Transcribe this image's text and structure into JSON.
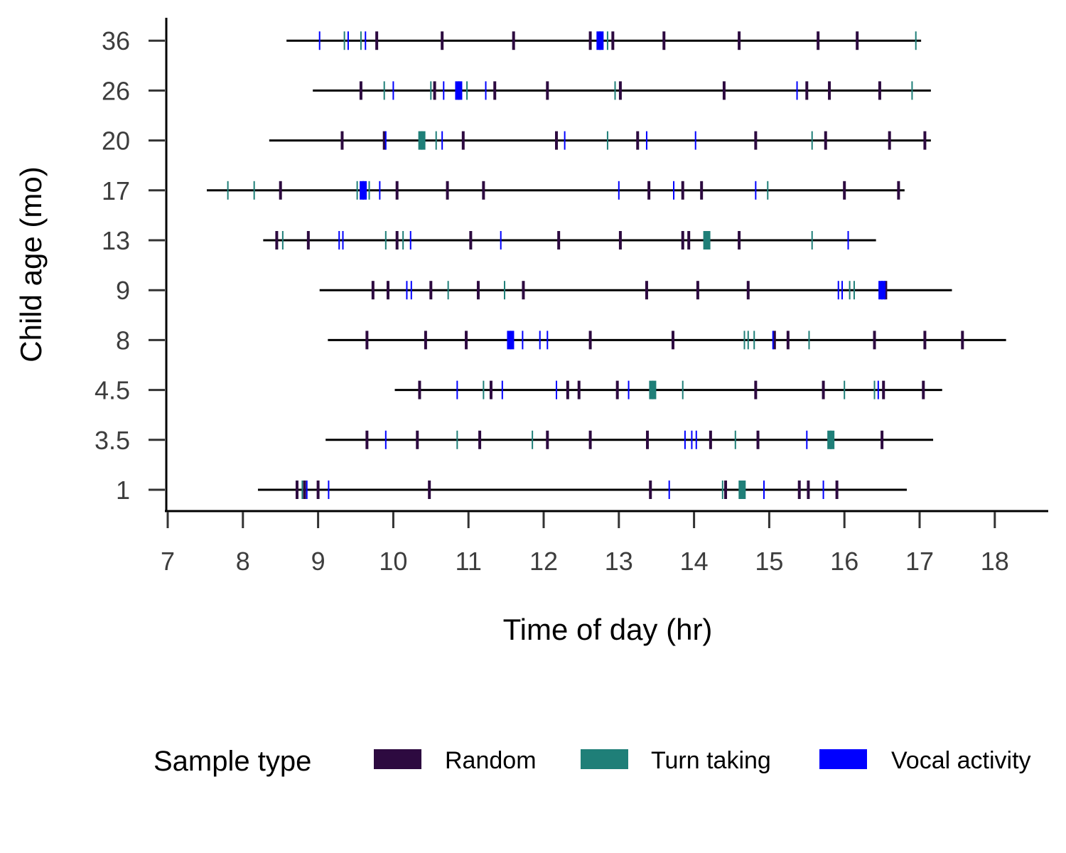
{
  "chart_data": {
    "type": "timeline",
    "xlabel": "Time of day (hr)",
    "ylabel": "Child age (mo)",
    "xlim": [
      7,
      18.7
    ],
    "x_ticks": [
      "7",
      "8",
      "9",
      "10",
      "11",
      "12",
      "13",
      "14",
      "15",
      "16",
      "17",
      "18"
    ],
    "categories": [
      "1",
      "3.5",
      "4.5",
      "8",
      "9",
      "13",
      "17",
      "20",
      "26",
      "36"
    ],
    "legend": {
      "title": "Sample type",
      "position": "bottom",
      "items": [
        {
          "key": "random",
          "label": "Random",
          "color": "#2d0a40"
        },
        {
          "key": "turn",
          "label": "Turn taking",
          "color": "#1f7f78"
        },
        {
          "key": "vocal",
          "label": "Vocal activity",
          "color": "#0000ff"
        }
      ]
    },
    "recordings": [
      {
        "age": "1",
        "start": 8.2,
        "end": 16.83,
        "random": [
          8.72,
          8.82,
          9.0,
          10.48,
          13.42,
          14.42,
          15.4,
          15.52,
          15.9
        ],
        "turn": [
          8.79,
          14.38,
          14.64
        ],
        "vocal": [
          8.85,
          9.14,
          13.67,
          14.93,
          15.72
        ]
      },
      {
        "age": "3.5",
        "start": 9.1,
        "end": 17.18,
        "random": [
          9.65,
          10.32,
          11.15,
          12.05,
          12.62,
          13.38,
          14.22,
          14.85,
          16.5
        ],
        "turn": [
          10.85,
          11.85,
          14.55,
          15.82
        ],
        "vocal": [
          9.9,
          13.88,
          13.97,
          14.03,
          15.5
        ]
      },
      {
        "age": "4.5",
        "start": 10.02,
        "end": 17.3,
        "random": [
          10.35,
          11.3,
          12.32,
          12.47,
          12.98,
          14.82,
          15.72,
          16.52,
          17.05
        ],
        "turn": [
          11.2,
          13.45,
          13.85,
          16.0,
          16.4
        ],
        "vocal": [
          10.85,
          11.45,
          12.17,
          13.13,
          16.45
        ]
      },
      {
        "age": "8",
        "start": 9.13,
        "end": 18.15,
        "random": [
          9.65,
          10.43,
          10.97,
          12.62,
          13.72,
          15.07,
          15.25,
          16.4,
          17.07,
          17.57
        ],
        "turn": [
          14.67,
          14.72,
          14.8,
          15.53
        ],
        "vocal": [
          11.56,
          11.72,
          11.95,
          12.05,
          15.05
        ]
      },
      {
        "age": "9",
        "start": 9.02,
        "end": 17.43,
        "random": [
          9.73,
          9.93,
          10.5,
          11.13,
          11.73,
          13.37,
          14.05,
          14.72,
          16.55
        ],
        "turn": [
          10.73,
          11.48,
          16.07,
          16.13
        ],
        "vocal": [
          10.18,
          10.24,
          15.92,
          15.97,
          16.5
        ]
      },
      {
        "age": "13",
        "start": 8.27,
        "end": 16.42,
        "random": [
          8.45,
          8.87,
          10.05,
          11.03,
          12.2,
          13.02,
          13.85,
          13.93,
          14.6
        ],
        "turn": [
          8.53,
          9.9,
          10.13,
          14.17,
          15.57
        ],
        "vocal": [
          9.28,
          9.33,
          10.23,
          11.43,
          16.05
        ]
      },
      {
        "age": "17",
        "start": 7.52,
        "end": 16.8,
        "random": [
          8.5,
          10.05,
          10.72,
          11.2,
          13.4,
          13.85,
          14.1,
          16.0,
          16.72
        ],
        "turn": [
          7.8,
          8.15,
          9.52,
          9.68,
          14.98
        ],
        "vocal": [
          9.6,
          9.82,
          13.0,
          13.73,
          14.82
        ]
      },
      {
        "age": "20",
        "start": 8.35,
        "end": 17.15,
        "random": [
          9.32,
          9.88,
          10.93,
          12.17,
          13.25,
          14.82,
          15.75,
          16.6,
          17.07
        ],
        "turn": [
          10.38,
          10.57,
          12.85,
          15.57
        ],
        "vocal": [
          9.9,
          10.65,
          12.28,
          13.37,
          14.02
        ]
      },
      {
        "age": "26",
        "start": 8.93,
        "end": 17.15,
        "random": [
          9.57,
          10.55,
          11.35,
          12.05,
          13.02,
          14.4,
          15.5,
          15.8,
          16.47
        ],
        "turn": [
          9.88,
          10.5,
          10.98,
          12.95,
          16.9
        ],
        "vocal": [
          10.0,
          10.67,
          10.87,
          11.23,
          15.37
        ]
      },
      {
        "age": "36",
        "start": 8.58,
        "end": 17.02,
        "random": [
          9.78,
          10.65,
          11.6,
          12.62,
          12.92,
          13.6,
          14.6,
          15.65,
          16.17
        ],
        "turn": [
          9.35,
          9.57,
          12.85,
          16.95
        ],
        "vocal": [
          9.02,
          9.4,
          9.63,
          12.75
        ]
      }
    ]
  }
}
